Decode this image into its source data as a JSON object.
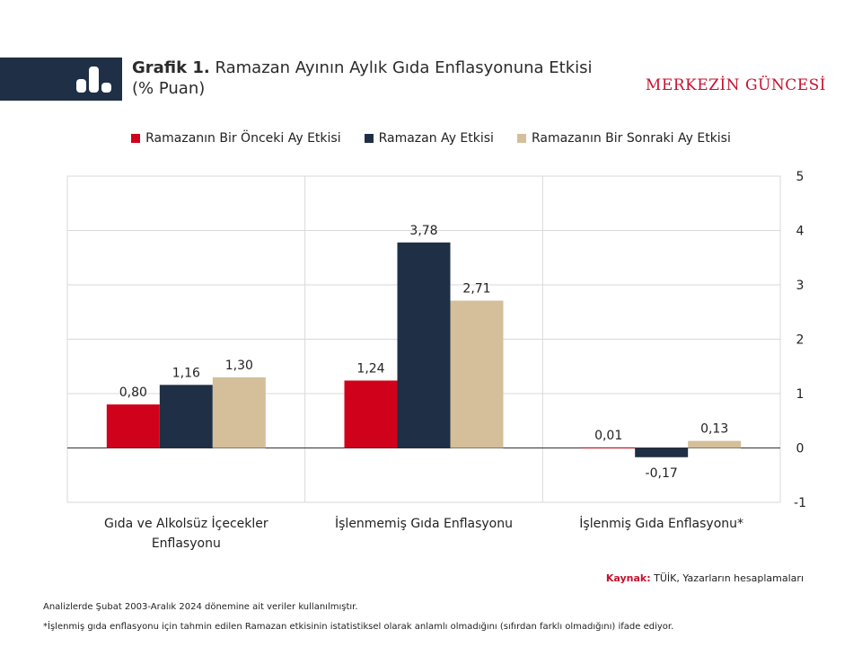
{
  "header": {
    "title_prefix": "Grafik 1.",
    "title_main": "Ramazan Ayının Aylık Gıda Enflasyonuna Etkisi",
    "title_unit": "(% Puan)",
    "brand": "MERKEZİN GÜNCESİ",
    "icon": "bar-chart-icon"
  },
  "colors": {
    "header_band": "#1f2f45",
    "brand": "#c8102e",
    "series": [
      "#d0021b",
      "#1f2f45",
      "#d4bf9a"
    ]
  },
  "chart_data": {
    "type": "bar",
    "categories": [
      [
        "Gıda ve Alkolsüz İçecekler",
        "Enflasyonu"
      ],
      [
        "İşlenmemiş Gıda Enflasyonu"
      ],
      [
        "İşlenmiş Gıda Enflasyonu*"
      ]
    ],
    "series": [
      {
        "name": "Ramazanın Bir Önceki Ay Etkisi",
        "values": [
          0.8,
          1.24,
          0.01
        ],
        "labels": [
          "0,80",
          "1,24",
          "0,01"
        ]
      },
      {
        "name": "Ramazan Ay Etkisi",
        "values": [
          1.16,
          3.78,
          -0.17
        ],
        "labels": [
          "1,16",
          "3,78",
          "-0,17"
        ]
      },
      {
        "name": "Ramazanın Bir Sonraki Ay Etkisi",
        "values": [
          1.3,
          2.71,
          0.13
        ],
        "labels": [
          "1,30",
          "2,71",
          "0,13"
        ]
      }
    ],
    "ylim": [
      -1,
      5
    ],
    "yticks": [
      5,
      4,
      3,
      2,
      1,
      0,
      -1
    ],
    "y_axis_side": "right",
    "grid": true,
    "legend_position": "top"
  },
  "footer": {
    "source_label": "Kaynak:",
    "source_text": "TÜİK, Yazarların hesaplamaları",
    "note1": "Analizlerde Şubat 2003-Aralık 2024 dönemine ait veriler kullanılmıştır.",
    "note2": "*İşlenmiş gıda enflasyonu için tahmin edilen Ramazan etkisinin istatistiksel olarak anlamlı olmadığını (sıfırdan farklı olmadığını) ifade ediyor."
  }
}
